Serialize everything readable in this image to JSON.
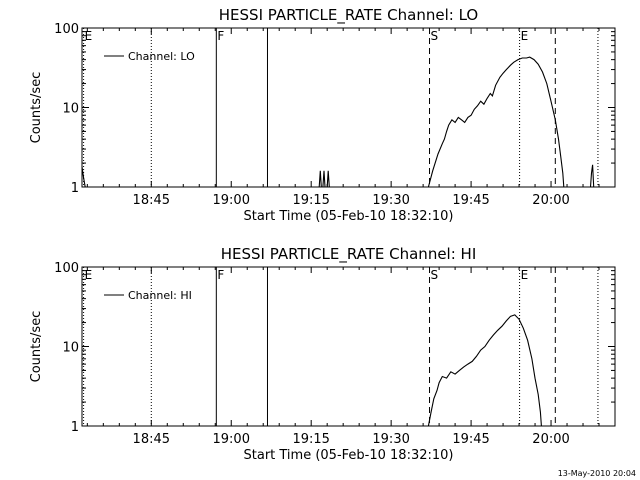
{
  "footer": {
    "stamp": "13-May-2010 20:04"
  },
  "chart_data": [
    {
      "type": "line",
      "title": "HESSI PARTICLE_RATE Channel: LO",
      "xlabel": "Start Time (05-Feb-10 18:32:10)",
      "ylabel": "Counts/sec",
      "xaxis_unit": "minutes since 18:32:10",
      "xlim": [
        0,
        100
      ],
      "ylim": [
        1,
        100
      ],
      "yscale": "log",
      "xticks": [
        {
          "value": 13,
          "label": "18:45"
        },
        {
          "value": 28,
          "label": "19:00"
        },
        {
          "value": 43,
          "label": "19:15"
        },
        {
          "value": 58,
          "label": "19:30"
        },
        {
          "value": 73,
          "label": "19:45"
        },
        {
          "value": 88,
          "label": "20:00"
        }
      ],
      "yticks": [
        {
          "value": 1,
          "label": "1"
        },
        {
          "value": 10,
          "label": "10"
        },
        {
          "value": 100,
          "label": "100"
        }
      ],
      "legend": "top-left",
      "series": [
        {
          "name": "Channel: LO",
          "color": "#000000",
          "points": [
            [
              0,
              1.8
            ],
            [
              0.3,
              1.3
            ],
            [
              0.6,
              1
            ],
            [
              1,
              1
            ],
            [
              44.5,
              1
            ],
            [
              44.7,
              1.6
            ],
            [
              44.9,
              1
            ],
            [
              45.2,
              1
            ],
            [
              45.4,
              1.6
            ],
            [
              45.6,
              1
            ],
            [
              46,
              1
            ],
            [
              46.2,
              1.6
            ],
            [
              46.4,
              1
            ],
            [
              65,
              1
            ],
            [
              65.8,
              1.6
            ],
            [
              66.8,
              2.6
            ],
            [
              67.6,
              3.5
            ],
            [
              68,
              4
            ],
            [
              68.4,
              5
            ],
            [
              68.8,
              6
            ],
            [
              69.4,
              7
            ],
            [
              70,
              6.5
            ],
            [
              70.6,
              7.5
            ],
            [
              71.2,
              7
            ],
            [
              71.8,
              6.5
            ],
            [
              72.4,
              7.5
            ],
            [
              73,
              8
            ],
            [
              73.6,
              9.5
            ],
            [
              74.2,
              10.5
            ],
            [
              74.8,
              12
            ],
            [
              75.4,
              11
            ],
            [
              76,
              13
            ],
            [
              76.6,
              15
            ],
            [
              77,
              14
            ],
            [
              77.6,
              19
            ],
            [
              78.4,
              24
            ],
            [
              79,
              27
            ],
            [
              79.6,
              30
            ],
            [
              80.4,
              34
            ],
            [
              81,
              37
            ],
            [
              81.8,
              40
            ],
            [
              82.6,
              42
            ],
            [
              83.4,
              42
            ],
            [
              84,
              43
            ],
            [
              84.8,
              40
            ],
            [
              85.6,
              35
            ],
            [
              86.4,
              28
            ],
            [
              87.2,
              20
            ],
            [
              88,
              12
            ],
            [
              88.8,
              7
            ],
            [
              89.4,
              4
            ],
            [
              89.8,
              2.5
            ],
            [
              90.2,
              1.5
            ],
            [
              90.4,
              1
            ],
            [
              95.4,
              1
            ],
            [
              95.6,
              1.5
            ],
            [
              95.8,
              1.9
            ],
            [
              96,
              1
            ]
          ]
        }
      ],
      "markers": [
        {
          "x": 0.3,
          "style": "dotted",
          "label": "E"
        },
        {
          "x": 13,
          "style": "dotted",
          "label": ""
        },
        {
          "x": 25.2,
          "style": "solid",
          "label": "F"
        },
        {
          "x": 34.8,
          "style": "solid",
          "label": ""
        },
        {
          "x": 65.2,
          "style": "dashed",
          "label": "S"
        },
        {
          "x": 82.1,
          "style": "dotted",
          "label": "E"
        },
        {
          "x": 88.8,
          "style": "dashed",
          "label": ""
        },
        {
          "x": 96.8,
          "style": "dotted",
          "label": ""
        }
      ]
    },
    {
      "type": "line",
      "title": "HESSI PARTICLE_RATE Channel: HI",
      "xlabel": "Start Time (05-Feb-10 18:32:10)",
      "ylabel": "Counts/sec",
      "xaxis_unit": "minutes since 18:32:10",
      "xlim": [
        0,
        100
      ],
      "ylim": [
        1,
        100
      ],
      "yscale": "log",
      "xticks": [
        {
          "value": 13,
          "label": "18:45"
        },
        {
          "value": 28,
          "label": "19:00"
        },
        {
          "value": 43,
          "label": "19:15"
        },
        {
          "value": 58,
          "label": "19:30"
        },
        {
          "value": 73,
          "label": "19:45"
        },
        {
          "value": 88,
          "label": "20:00"
        }
      ],
      "yticks": [
        {
          "value": 1,
          "label": "1"
        },
        {
          "value": 10,
          "label": "10"
        },
        {
          "value": 100,
          "label": "100"
        }
      ],
      "legend": "top-left",
      "series": [
        {
          "name": "Channel: HI",
          "color": "#000000",
          "points": [
            [
              65,
              1
            ],
            [
              65.5,
              1.5
            ],
            [
              66,
              2.2
            ],
            [
              66.6,
              2.8
            ],
            [
              67,
              3.5
            ],
            [
              67.6,
              4.2
            ],
            [
              68.4,
              4
            ],
            [
              69.2,
              4.8
            ],
            [
              70,
              4.5
            ],
            [
              70.8,
              5
            ],
            [
              71.6,
              5.5
            ],
            [
              72.4,
              6
            ],
            [
              73.2,
              6.5
            ],
            [
              74,
              7.5
            ],
            [
              74.8,
              9
            ],
            [
              75.6,
              10
            ],
            [
              76.4,
              12
            ],
            [
              77.2,
              14
            ],
            [
              78,
              16
            ],
            [
              78.8,
              18
            ],
            [
              79.6,
              21
            ],
            [
              80.4,
              24
            ],
            [
              81.2,
              25
            ],
            [
              82,
              22
            ],
            [
              82.8,
              17
            ],
            [
              83.6,
              12
            ],
            [
              84.4,
              7
            ],
            [
              85,
              4
            ],
            [
              85.6,
              2.5
            ],
            [
              86,
              1.5
            ],
            [
              86.2,
              1
            ]
          ]
        }
      ],
      "markers": [
        {
          "x": 0.3,
          "style": "dotted",
          "label": "E"
        },
        {
          "x": 13,
          "style": "dotted",
          "label": ""
        },
        {
          "x": 25.2,
          "style": "solid",
          "label": "F"
        },
        {
          "x": 34.8,
          "style": "solid",
          "label": ""
        },
        {
          "x": 65.2,
          "style": "dashed",
          "label": "S"
        },
        {
          "x": 82.1,
          "style": "dotted",
          "label": "E"
        },
        {
          "x": 88.8,
          "style": "dashed",
          "label": ""
        },
        {
          "x": 96.8,
          "style": "dotted",
          "label": ""
        }
      ]
    }
  ]
}
